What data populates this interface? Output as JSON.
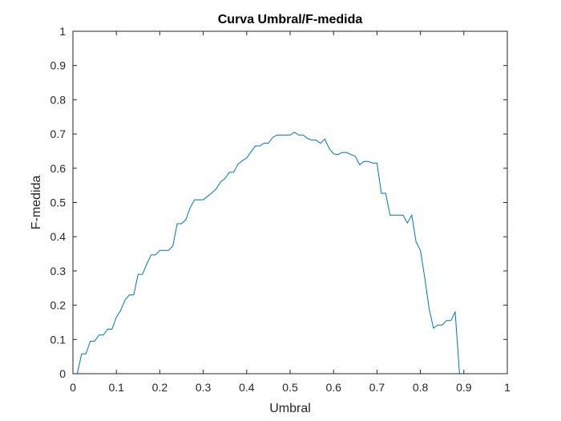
{
  "chart_data": {
    "type": "line",
    "title": "Curva Umbral/F-medida",
    "xlabel": "Umbral",
    "ylabel": "F-medida",
    "xlim": [
      0,
      1
    ],
    "ylim": [
      0,
      1
    ],
    "xticks": [
      "0",
      "0.1",
      "0.2",
      "0.3",
      "0.4",
      "0.5",
      "0.6",
      "0.7",
      "0.8",
      "0.9",
      "1"
    ],
    "yticks": [
      "0",
      "0.1",
      "0.2",
      "0.3",
      "0.4",
      "0.5",
      "0.6",
      "0.7",
      "0.8",
      "0.9",
      "1"
    ],
    "grid": false,
    "box": true,
    "line_color": "#0072BD",
    "axis_color": "#262626",
    "series": [
      {
        "x": [
          0.01,
          0.02,
          0.03,
          0.04,
          0.05,
          0.06,
          0.07,
          0.08,
          0.09,
          0.1,
          0.11,
          0.12,
          0.13,
          0.14,
          0.15,
          0.16,
          0.17,
          0.18,
          0.19,
          0.2,
          0.21,
          0.22,
          0.23,
          0.24,
          0.25,
          0.26,
          0.27,
          0.28,
          0.29,
          0.3,
          0.31,
          0.32,
          0.33,
          0.34,
          0.35,
          0.36,
          0.37,
          0.38,
          0.39,
          0.4,
          0.41,
          0.42,
          0.43,
          0.44,
          0.45,
          0.46,
          0.47,
          0.48,
          0.49,
          0.5,
          0.51,
          0.52,
          0.53,
          0.54,
          0.55,
          0.56,
          0.57,
          0.58,
          0.59,
          0.6,
          0.61,
          0.62,
          0.63,
          0.64,
          0.65,
          0.66,
          0.67,
          0.68,
          0.69,
          0.7,
          0.71,
          0.72,
          0.73,
          0.74,
          0.75,
          0.76,
          0.77,
          0.78,
          0.79,
          0.8,
          0.81,
          0.82,
          0.83,
          0.84,
          0.85,
          0.86,
          0.87,
          0.88,
          0.89,
          0.9,
          0.91,
          0.92,
          0.93,
          0.94,
          0.95,
          0.96,
          0.97,
          0.98,
          0.99,
          1.0
        ],
        "y": [
          0,
          0.058,
          0.058,
          0.095,
          0.095,
          0.113,
          0.113,
          0.13,
          0.13,
          0.165,
          0.185,
          0.215,
          0.23,
          0.23,
          0.29,
          0.29,
          0.32,
          0.347,
          0.347,
          0.36,
          0.36,
          0.36,
          0.373,
          0.438,
          0.438,
          0.45,
          0.485,
          0.508,
          0.508,
          0.508,
          0.518,
          0.528,
          0.54,
          0.56,
          0.57,
          0.588,
          0.588,
          0.612,
          0.622,
          0.63,
          0.648,
          0.665,
          0.665,
          0.673,
          0.673,
          0.69,
          0.697,
          0.697,
          0.697,
          0.697,
          0.705,
          0.697,
          0.697,
          0.687,
          0.682,
          0.682,
          0.673,
          0.685,
          0.658,
          0.642,
          0.64,
          0.646,
          0.646,
          0.64,
          0.635,
          0.61,
          0.62,
          0.62,
          0.615,
          0.615,
          0.527,
          0.527,
          0.463,
          0.463,
          0.463,
          0.463,
          0.44,
          0.463,
          0.385,
          0.36,
          0.28,
          0.19,
          0.133,
          0.142,
          0.142,
          0.155,
          0.155,
          0.18,
          0,
          0,
          0,
          0,
          0,
          0,
          0,
          0,
          0,
          0,
          0,
          0
        ]
      }
    ]
  }
}
